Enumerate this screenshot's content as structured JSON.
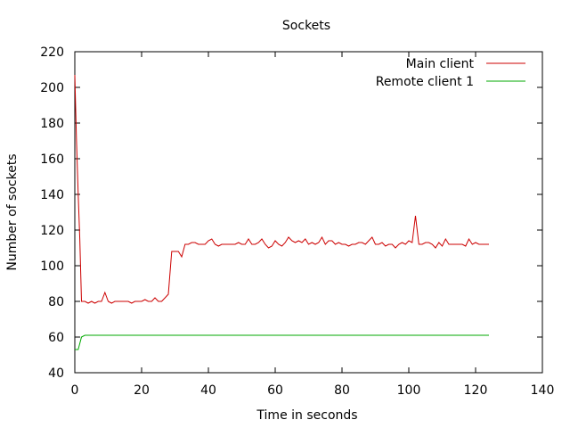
{
  "chart_data": {
    "type": "line",
    "title": "Sockets",
    "xlabel": "Time in seconds",
    "ylabel": "Number of sockets",
    "xlim": [
      0,
      140
    ],
    "ylim": [
      40,
      220
    ],
    "x_ticks": [
      0,
      20,
      40,
      60,
      80,
      100,
      120,
      140
    ],
    "y_ticks": [
      40,
      60,
      80,
      100,
      120,
      140,
      160,
      180,
      200,
      220
    ],
    "grid": false,
    "legend_position": "top-right",
    "series": [
      {
        "name": "Main client",
        "color": "#cc0000",
        "points": [
          [
            0,
            207
          ],
          [
            0.5,
            170
          ],
          [
            1,
            140
          ],
          [
            1.5,
            115
          ],
          [
            2,
            80
          ],
          [
            3,
            80
          ],
          [
            4,
            79
          ],
          [
            5,
            80
          ],
          [
            6,
            79
          ],
          [
            7,
            80
          ],
          [
            8,
            80
          ],
          [
            9,
            85
          ],
          [
            10,
            80
          ],
          [
            11,
            79
          ],
          [
            12,
            80
          ],
          [
            14,
            80
          ],
          [
            16,
            80
          ],
          [
            17,
            79
          ],
          [
            18,
            80
          ],
          [
            20,
            80
          ],
          [
            21,
            81
          ],
          [
            22,
            80
          ],
          [
            23,
            80
          ],
          [
            24,
            82
          ],
          [
            25,
            80
          ],
          [
            26,
            80
          ],
          [
            27,
            82
          ],
          [
            28,
            84
          ],
          [
            29,
            108
          ],
          [
            30,
            108
          ],
          [
            31,
            108
          ],
          [
            32,
            105
          ],
          [
            33,
            112
          ],
          [
            34,
            112
          ],
          [
            35,
            113
          ],
          [
            36,
            113
          ],
          [
            37,
            112
          ],
          [
            38,
            112
          ],
          [
            39,
            112
          ],
          [
            40,
            114
          ],
          [
            41,
            115
          ],
          [
            42,
            112
          ],
          [
            43,
            111
          ],
          [
            44,
            112
          ],
          [
            46,
            112
          ],
          [
            48,
            112
          ],
          [
            49,
            113
          ],
          [
            50,
            112
          ],
          [
            51,
            112
          ],
          [
            52,
            115
          ],
          [
            53,
            112
          ],
          [
            54,
            112
          ],
          [
            55,
            113
          ],
          [
            56,
            115
          ],
          [
            57,
            112
          ],
          [
            58,
            110
          ],
          [
            59,
            111
          ],
          [
            60,
            114
          ],
          [
            61,
            112
          ],
          [
            62,
            111
          ],
          [
            63,
            113
          ],
          [
            64,
            116
          ],
          [
            65,
            114
          ],
          [
            66,
            113
          ],
          [
            67,
            114
          ],
          [
            68,
            113
          ],
          [
            69,
            115
          ],
          [
            70,
            112
          ],
          [
            71,
            113
          ],
          [
            72,
            112
          ],
          [
            73,
            113
          ],
          [
            74,
            116
          ],
          [
            75,
            112
          ],
          [
            76,
            114
          ],
          [
            77,
            114
          ],
          [
            78,
            112
          ],
          [
            79,
            113
          ],
          [
            80,
            112
          ],
          [
            81,
            112
          ],
          [
            82,
            111
          ],
          [
            83,
            112
          ],
          [
            84,
            112
          ],
          [
            85,
            113
          ],
          [
            86,
            113
          ],
          [
            87,
            112
          ],
          [
            88,
            114
          ],
          [
            89,
            116
          ],
          [
            90,
            112
          ],
          [
            91,
            112
          ],
          [
            92,
            113
          ],
          [
            93,
            111
          ],
          [
            94,
            112
          ],
          [
            95,
            112
          ],
          [
            96,
            110
          ],
          [
            97,
            112
          ],
          [
            98,
            113
          ],
          [
            99,
            112
          ],
          [
            100,
            114
          ],
          [
            101,
            113
          ],
          [
            102,
            128
          ],
          [
            103,
            112
          ],
          [
            104,
            112
          ],
          [
            105,
            113
          ],
          [
            106,
            113
          ],
          [
            107,
            112
          ],
          [
            108,
            110
          ],
          [
            109,
            113
          ],
          [
            110,
            111
          ],
          [
            111,
            115
          ],
          [
            112,
            112
          ],
          [
            113,
            112
          ],
          [
            114,
            112
          ],
          [
            115,
            112
          ],
          [
            116,
            112
          ],
          [
            117,
            111
          ],
          [
            118,
            115
          ],
          [
            119,
            112
          ],
          [
            120,
            113
          ],
          [
            121,
            112
          ],
          [
            122,
            112
          ],
          [
            123,
            112
          ],
          [
            124,
            112
          ]
        ]
      },
      {
        "name": "Remote client 1",
        "color": "#00aa00",
        "points": [
          [
            0,
            53
          ],
          [
            1,
            53
          ],
          [
            2,
            60
          ],
          [
            3,
            61
          ],
          [
            10,
            61
          ],
          [
            20,
            61
          ],
          [
            40,
            61
          ],
          [
            60,
            61
          ],
          [
            80,
            61
          ],
          [
            100,
            61
          ],
          [
            124,
            61
          ]
        ]
      }
    ]
  }
}
